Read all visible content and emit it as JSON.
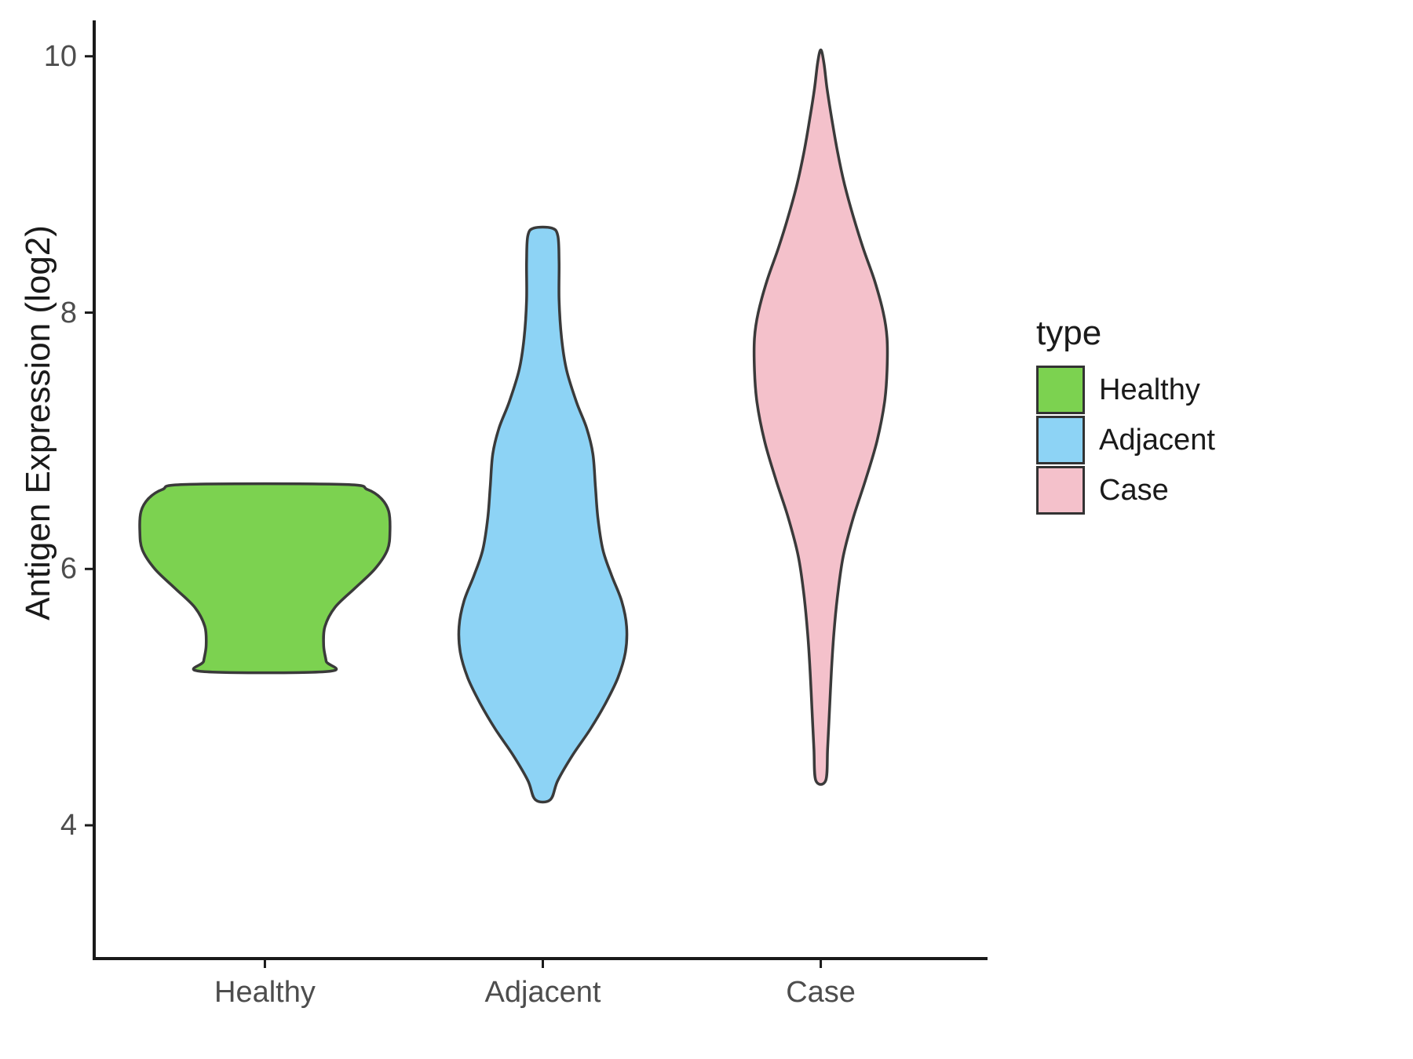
{
  "chart_data": {
    "type": "violin",
    "title": "",
    "xlabel": "",
    "ylabel": "Antigen Expression (log2)",
    "categories": [
      "Healthy",
      "Adjacent",
      "Case"
    ],
    "y_ticks": [
      4,
      6,
      8,
      10
    ],
    "y_axis_range": [
      2.96,
      10.28
    ],
    "grid": "off",
    "legend": {
      "title": "type",
      "position": "right",
      "entries": [
        {
          "label": "Healthy",
          "color": "#7CD250"
        },
        {
          "label": "Adjacent",
          "color": "#8DD3F5"
        },
        {
          "label": "Case",
          "color": "#F4C1CB"
        }
      ]
    },
    "profile_format": "[expression_value_log2, half_width_fraction_of_max_violin_width]",
    "series": [
      {
        "name": "Healthy",
        "color": "#7CD250",
        "value_range": [
          5.2,
          6.66
        ],
        "mode_value": 6.3,
        "profile": [
          [
            5.2,
            0.5
          ],
          [
            5.28,
            0.49
          ],
          [
            5.4,
            0.47
          ],
          [
            5.55,
            0.48
          ],
          [
            5.7,
            0.56
          ],
          [
            5.85,
            0.72
          ],
          [
            6.0,
            0.88
          ],
          [
            6.15,
            0.98
          ],
          [
            6.3,
            1.0
          ],
          [
            6.45,
            0.99
          ],
          [
            6.55,
            0.93
          ],
          [
            6.62,
            0.82
          ],
          [
            6.66,
            0.62
          ]
        ]
      },
      {
        "name": "Adjacent",
        "color": "#8DD3F5",
        "value_range": [
          4.2,
          8.66
        ],
        "mode_value": 5.5,
        "profile": [
          [
            4.2,
            0.06
          ],
          [
            4.35,
            0.12
          ],
          [
            4.55,
            0.24
          ],
          [
            4.75,
            0.38
          ],
          [
            4.95,
            0.5
          ],
          [
            5.15,
            0.6
          ],
          [
            5.35,
            0.66
          ],
          [
            5.55,
            0.67
          ],
          [
            5.75,
            0.63
          ],
          [
            5.95,
            0.55
          ],
          [
            6.15,
            0.48
          ],
          [
            6.4,
            0.44
          ],
          [
            6.65,
            0.42
          ],
          [
            6.9,
            0.4
          ],
          [
            7.1,
            0.35
          ],
          [
            7.3,
            0.27
          ],
          [
            7.55,
            0.19
          ],
          [
            7.8,
            0.15
          ],
          [
            8.1,
            0.13
          ],
          [
            8.4,
            0.13
          ],
          [
            8.6,
            0.12
          ],
          [
            8.66,
            0.07
          ]
        ]
      },
      {
        "name": "Case",
        "color": "#F4C1CB",
        "value_range": [
          4.35,
          10.05
        ],
        "mode_value": 7.8,
        "profile": [
          [
            4.35,
            0.04
          ],
          [
            4.6,
            0.055
          ],
          [
            4.9,
            0.07
          ],
          [
            5.2,
            0.085
          ],
          [
            5.5,
            0.105
          ],
          [
            5.8,
            0.135
          ],
          [
            6.1,
            0.18
          ],
          [
            6.4,
            0.26
          ],
          [
            6.7,
            0.36
          ],
          [
            7.0,
            0.45
          ],
          [
            7.3,
            0.51
          ],
          [
            7.55,
            0.53
          ],
          [
            7.8,
            0.53
          ],
          [
            8.0,
            0.5
          ],
          [
            8.25,
            0.43
          ],
          [
            8.5,
            0.34
          ],
          [
            8.75,
            0.26
          ],
          [
            9.0,
            0.19
          ],
          [
            9.25,
            0.135
          ],
          [
            9.5,
            0.09
          ],
          [
            9.75,
            0.05
          ],
          [
            9.95,
            0.025
          ],
          [
            10.05,
            0.0
          ]
        ]
      }
    ],
    "style": {
      "outline_color": "#3A3A3A",
      "axis_color": "#1A1A1A",
      "tick_label_color": "#4D4D4D",
      "title_color": "#1A1A1A",
      "background": "#FFFFFF"
    }
  }
}
